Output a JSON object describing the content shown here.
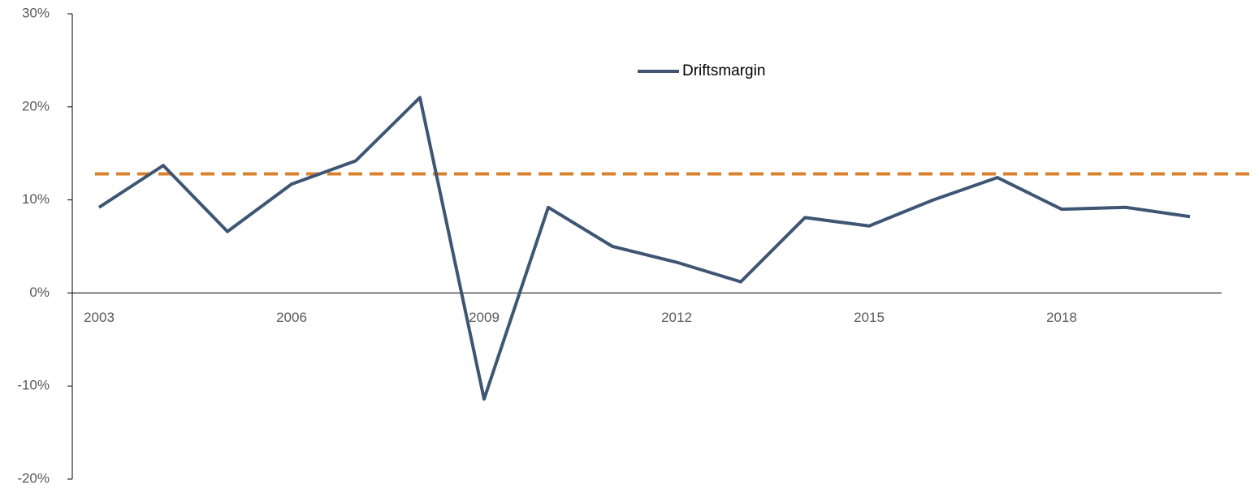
{
  "chart_data": {
    "type": "line",
    "categories": [
      "2003",
      null,
      null,
      "2006",
      null,
      null,
      "2009",
      null,
      null,
      "2012",
      null,
      null,
      "2015",
      null,
      null,
      "2018",
      null,
      null
    ],
    "series": [
      {
        "name": "Driftsmargin",
        "color": "#3e5673",
        "values": [
          9.2,
          13.7,
          6.6,
          11.7,
          14.2,
          21.0,
          -11.4,
          9.2,
          5.0,
          3.3,
          1.2,
          8.1,
          7.2,
          10.0,
          12.4,
          9.0,
          9.2,
          8.2
        ]
      }
    ],
    "reference_line": {
      "value": 12.8,
      "color": "#d9822b"
    },
    "ylim": [
      -20,
      30
    ],
    "yticks": [
      {
        "value": -20,
        "label": "-20%"
      },
      {
        "value": -10,
        "label": "-10%"
      },
      {
        "value": 0,
        "label": "0%"
      },
      {
        "value": 10,
        "label": "10%"
      },
      {
        "value": 20,
        "label": "20%"
      },
      {
        "value": 30,
        "label": "30%"
      }
    ],
    "grid": false,
    "legend": "top"
  }
}
